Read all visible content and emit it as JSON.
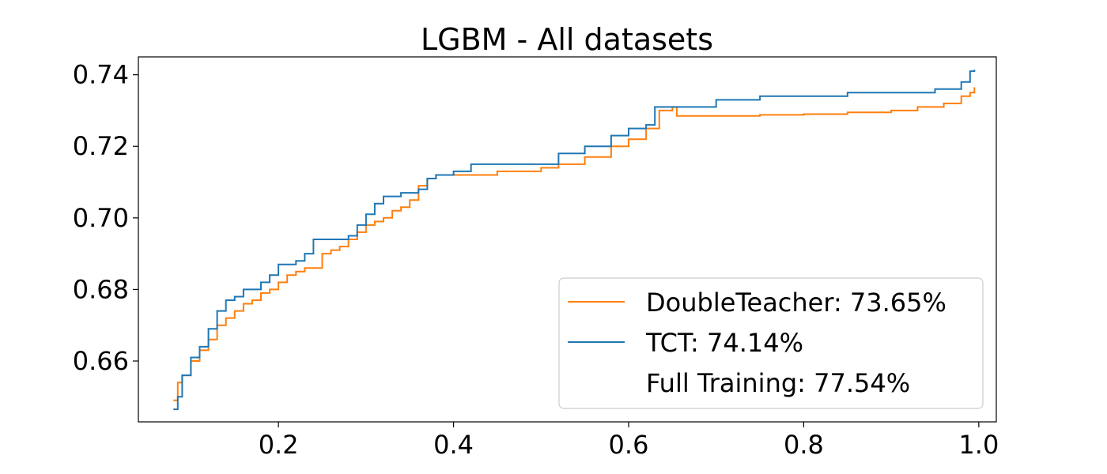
{
  "chart_data": {
    "type": "line",
    "title": "LGBM - All datasets",
    "xlabel": "",
    "ylabel": "",
    "xlim": [
      0.04,
      1.02
    ],
    "ylim": [
      0.643,
      0.745
    ],
    "xticks": [
      0.2,
      0.4,
      0.6,
      0.8,
      1.0
    ],
    "xtick_labels": [
      "0.2",
      "0.4",
      "0.6",
      "0.8",
      "1.0"
    ],
    "yticks": [
      0.66,
      0.68,
      0.7,
      0.72,
      0.74
    ],
    "ytick_labels": [
      "0.66",
      "0.68",
      "0.70",
      "0.72",
      "0.74"
    ],
    "grid": false,
    "legend_position": "lower-right",
    "series": [
      {
        "name": "DoubleTeacher: 73.65%",
        "color": "#ff7f0e",
        "x": [
          0.08,
          0.085,
          0.09,
          0.1,
          0.11,
          0.12,
          0.13,
          0.14,
          0.15,
          0.16,
          0.17,
          0.18,
          0.19,
          0.2,
          0.21,
          0.22,
          0.23,
          0.24,
          0.25,
          0.26,
          0.27,
          0.28,
          0.29,
          0.3,
          0.31,
          0.32,
          0.33,
          0.34,
          0.35,
          0.36,
          0.37,
          0.38,
          0.4,
          0.45,
          0.5,
          0.52,
          0.55,
          0.58,
          0.6,
          0.62,
          0.635,
          0.65,
          0.655,
          0.66,
          0.7,
          0.75,
          0.8,
          0.85,
          0.9,
          0.93,
          0.96,
          0.98,
          0.99,
          0.995
        ],
        "y": [
          0.649,
          0.654,
          0.656,
          0.66,
          0.663,
          0.666,
          0.67,
          0.672,
          0.674,
          0.676,
          0.677,
          0.679,
          0.68,
          0.682,
          0.684,
          0.685,
          0.686,
          0.686,
          0.69,
          0.691,
          0.692,
          0.694,
          0.696,
          0.698,
          0.699,
          0.7,
          0.702,
          0.703,
          0.705,
          0.709,
          0.711,
          0.712,
          0.712,
          0.713,
          0.714,
          0.715,
          0.717,
          0.72,
          0.722,
          0.725,
          0.73,
          0.731,
          0.7285,
          0.7285,
          0.7285,
          0.7288,
          0.729,
          0.7295,
          0.73,
          0.731,
          0.732,
          0.734,
          0.735,
          0.7365
        ]
      },
      {
        "name": "TCT: 74.14%",
        "color": "#1f77b4",
        "x": [
          0.08,
          0.085,
          0.09,
          0.1,
          0.11,
          0.12,
          0.13,
          0.14,
          0.15,
          0.16,
          0.17,
          0.18,
          0.19,
          0.2,
          0.21,
          0.22,
          0.23,
          0.24,
          0.25,
          0.26,
          0.27,
          0.28,
          0.29,
          0.3,
          0.31,
          0.32,
          0.33,
          0.34,
          0.35,
          0.36,
          0.37,
          0.38,
          0.4,
          0.42,
          0.45,
          0.5,
          0.52,
          0.55,
          0.58,
          0.6,
          0.62,
          0.63,
          0.65,
          0.7,
          0.75,
          0.8,
          0.85,
          0.9,
          0.95,
          0.98,
          0.99,
          0.995
        ],
        "y": [
          0.6465,
          0.65,
          0.656,
          0.661,
          0.664,
          0.669,
          0.674,
          0.677,
          0.678,
          0.68,
          0.68,
          0.682,
          0.684,
          0.687,
          0.687,
          0.688,
          0.69,
          0.694,
          0.694,
          0.694,
          0.694,
          0.695,
          0.698,
          0.701,
          0.704,
          0.706,
          0.706,
          0.707,
          0.707,
          0.708,
          0.711,
          0.712,
          0.713,
          0.715,
          0.715,
          0.715,
          0.718,
          0.72,
          0.723,
          0.725,
          0.726,
          0.731,
          0.731,
          0.733,
          0.734,
          0.734,
          0.735,
          0.735,
          0.736,
          0.738,
          0.741,
          0.7414
        ]
      },
      {
        "name": "Full Training: 77.54%",
        "color": "#2ca02c",
        "x": [],
        "y": []
      }
    ]
  }
}
